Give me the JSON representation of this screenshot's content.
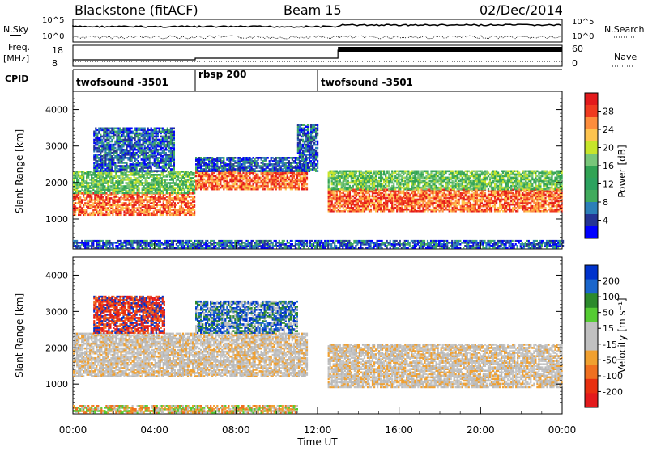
{
  "header": {
    "station": "Blackstone (fitACF)",
    "beam": "Beam 15",
    "date": "02/Dec/2014"
  },
  "params": {
    "left_labels": [
      "N.Sky",
      "Freq.",
      "[MHz]",
      "CPID"
    ],
    "right_labels": [
      "N.Search",
      "Nave"
    ],
    "nsky_ticks": [
      "10^5",
      "10^0"
    ],
    "nsky_right_ticks": [
      "10^5",
      "10^0"
    ],
    "freq_ticks": [
      "18",
      "8"
    ],
    "nave_ticks": [
      "60",
      "0"
    ]
  },
  "cpid": [
    {
      "label": "twofsound -3501",
      "start_hour": 0.0,
      "end_hour": 6.0
    },
    {
      "label": "rbsp 200",
      "start_hour": 6.0,
      "end_hour": 12.0
    },
    {
      "label": "twofsound -3501",
      "start_hour": 12.0,
      "end_hour": 24.0
    }
  ],
  "chart_data": [
    {
      "type": "heatmap",
      "panel": "power",
      "ylabel": "Slant Range [km]",
      "xlabel": "Time UT",
      "xlim_hours": [
        0,
        24
      ],
      "ylim": [
        180,
        4500
      ],
      "yticks": [
        1000,
        2000,
        3000,
        4000
      ],
      "xticks": [
        "00:00",
        "04:00",
        "08:00",
        "12:00",
        "16:00",
        "20:00",
        "00:00"
      ],
      "xtick_hours": [
        0,
        4,
        8,
        12,
        16,
        20,
        24
      ],
      "colorbar": {
        "label": "Power [dB]",
        "ticks": [
          "28",
          "24",
          "20",
          "16",
          "12",
          "8",
          "4"
        ],
        "colors": [
          "#e31a1c",
          "#f03b20",
          "#fd8d3c",
          "#fec44f",
          "#c7e52a",
          "#78c679",
          "#31a354",
          "#2ca25f",
          "#41ab5d",
          "#2c7fb8",
          "#253494",
          "#0000ff"
        ]
      },
      "bands": [
        {
          "t0": 0.0,
          "t1": 6.0,
          "r0": 1100,
          "r1": 1700,
          "level": "high"
        },
        {
          "t0": 0.0,
          "t1": 6.0,
          "r0": 1700,
          "r1": 2300,
          "level": "mid"
        },
        {
          "t0": 1.0,
          "t1": 5.0,
          "r0": 2300,
          "r1": 3500,
          "level": "low"
        },
        {
          "t0": 6.0,
          "t1": 11.5,
          "r0": 1800,
          "r1": 2300,
          "level": "high"
        },
        {
          "t0": 6.0,
          "t1": 11.5,
          "r0": 2300,
          "r1": 2700,
          "level": "low"
        },
        {
          "t0": 11.0,
          "t1": 12.0,
          "r0": 2300,
          "r1": 3600,
          "level": "low"
        },
        {
          "t0": 12.5,
          "t1": 24.0,
          "r0": 1200,
          "r1": 1800,
          "level": "high"
        },
        {
          "t0": 12.5,
          "t1": 24.0,
          "r0": 1800,
          "r1": 2300,
          "level": "mid"
        },
        {
          "t0": 0.0,
          "t1": 24.0,
          "r0": 200,
          "r1": 400,
          "level": "low"
        }
      ]
    },
    {
      "type": "heatmap",
      "panel": "velocity",
      "ylabel": "Slant Range [km]",
      "xlabel": "Time UT",
      "xlim_hours": [
        0,
        24
      ],
      "ylim": [
        180,
        4500
      ],
      "yticks": [
        1000,
        2000,
        3000,
        4000
      ],
      "xticks": [
        "00:00",
        "04:00",
        "08:00",
        "12:00",
        "16:00",
        "20:00",
        "00:00"
      ],
      "xtick_hours": [
        0,
        4,
        8,
        12,
        16,
        20,
        24
      ],
      "colorbar": {
        "label": "Velocity [m s⁻¹]",
        "ticks": [
          "200",
          "100",
          "50",
          "15",
          "-15",
          "-50",
          "-100",
          "-200"
        ],
        "colors": [
          "#0033cc",
          "#1a66cc",
          "#2c8a2c",
          "#55cc33",
          "#c0c0c0",
          "#c0c0c0",
          "#f0a030",
          "#f07020",
          "#e83010",
          "#e31a1c"
        ]
      },
      "bands": [
        {
          "t0": 0.0,
          "t1": 11.5,
          "r0": 1200,
          "r1": 2400,
          "level": "grey"
        },
        {
          "t0": 12.5,
          "t1": 24.0,
          "r0": 900,
          "r1": 2100,
          "level": "grey"
        },
        {
          "t0": 1.0,
          "t1": 4.5,
          "r0": 2400,
          "r1": 3400,
          "level": "red"
        },
        {
          "t0": 6.0,
          "t1": 11.0,
          "r0": 2400,
          "r1": 3300,
          "level": "blue"
        },
        {
          "t0": 0.0,
          "t1": 11.0,
          "r0": 200,
          "r1": 400,
          "level": "orange"
        }
      ]
    }
  ]
}
